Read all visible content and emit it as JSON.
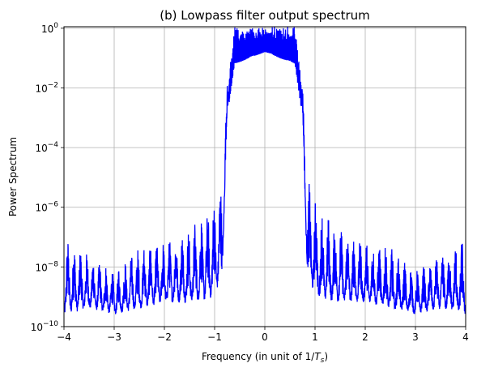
{
  "chart_data": {
    "type": "line",
    "title": "(b) Lowpass filter output spectrum",
    "xlabel": "Frequency (in unit of 1/",
    "xlabel_math": "T",
    "xlabel_sub": "s",
    "xlabel_close": ")",
    "ylabel": "Power Spectrum",
    "xlim": [
      -4,
      4
    ],
    "ylim_log10": [
      -10,
      0.05
    ],
    "x_ticks": [
      -4,
      -3,
      -2,
      -1,
      0,
      1,
      2,
      3,
      4
    ],
    "x_tick_labels": [
      "−4",
      "−3",
      "−2",
      "−1",
      "0",
      "1",
      "2",
      "3",
      "4"
    ],
    "y_ticks_log10": [
      -10,
      -8,
      -6,
      -4,
      -2,
      0
    ],
    "y_tick_base": "10",
    "y_tick_exponents": [
      "−10",
      "−8",
      "−6",
      "−4",
      "−2",
      "0"
    ],
    "grid": true,
    "series": [
      {
        "name": "output spectrum",
        "color": "#0000ff",
        "description_points": [
          {
            "x": -4.0,
            "upper_log10": -7.3,
            "lower_log10": -9.6
          },
          {
            "x": -3.5,
            "upper_log10": -7.8,
            "lower_log10": -9.4
          },
          {
            "x": -3.0,
            "upper_log10": -8.3,
            "lower_log10": -9.6
          },
          {
            "x": -2.5,
            "upper_log10": -7.6,
            "lower_log10": -9.4
          },
          {
            "x": -2.0,
            "upper_log10": -7.4,
            "lower_log10": -9.2
          },
          {
            "x": -1.5,
            "upper_log10": -7.0,
            "lower_log10": -9.2
          },
          {
            "x": -1.1,
            "upper_log10": -6.4,
            "lower_log10": -9.1
          },
          {
            "x": -0.85,
            "upper_log10": -5.5,
            "lower_log10": -8.5
          },
          {
            "x": -0.75,
            "upper_log10": -2.0,
            "lower_log10": -3.0
          },
          {
            "x": -0.6,
            "upper_log10": 0.05,
            "lower_log10": -1.2
          },
          {
            "x": 0.0,
            "upper_log10": 0.05,
            "lower_log10": -0.8
          },
          {
            "x": 0.6,
            "upper_log10": 0.05,
            "lower_log10": -1.2
          },
          {
            "x": 0.75,
            "upper_log10": -2.0,
            "lower_log10": -3.0
          },
          {
            "x": 0.85,
            "upper_log10": -5.5,
            "lower_log10": -8.5
          },
          {
            "x": 1.1,
            "upper_log10": -6.4,
            "lower_log10": -9.1
          },
          {
            "x": 1.5,
            "upper_log10": -7.0,
            "lower_log10": -9.2
          },
          {
            "x": 2.0,
            "upper_log10": -7.4,
            "lower_log10": -9.2
          },
          {
            "x": 2.5,
            "upper_log10": -7.6,
            "lower_log10": -9.4
          },
          {
            "x": 3.0,
            "upper_log10": -8.3,
            "lower_log10": -9.6
          },
          {
            "x": 3.5,
            "upper_log10": -7.8,
            "lower_log10": -9.4
          },
          {
            "x": 4.0,
            "upper_log10": -7.3,
            "lower_log10": -9.6
          }
        ]
      }
    ]
  }
}
